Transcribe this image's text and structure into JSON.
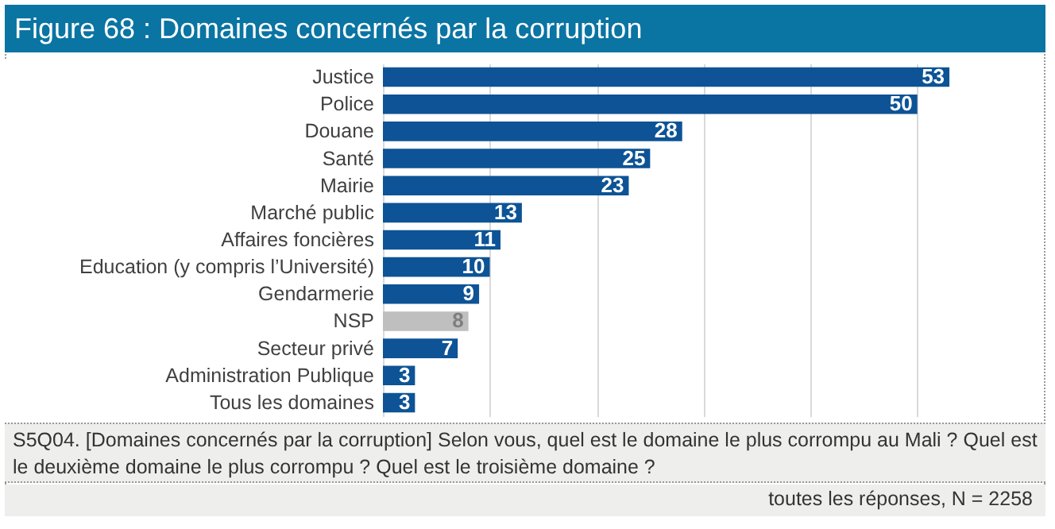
{
  "chart_data": {
    "type": "bar",
    "orientation": "horizontal",
    "title": "Figure 68 : Domaines concernés par la corruption",
    "categories": [
      "Justice",
      "Police",
      "Douane",
      "Santé",
      "Mairie",
      "Marché public",
      "Affaires foncières",
      "Education (y compris l’Université)",
      "Gendarmerie",
      "NSP",
      "Secteur privé",
      "Administration Publique",
      "Tous les domaines"
    ],
    "values": [
      53,
      50,
      28,
      25,
      23,
      13,
      11,
      10,
      9,
      8,
      7,
      3,
      3
    ],
    "colors": [
      "#0d5396",
      "#0d5396",
      "#0d5396",
      "#0d5396",
      "#0d5396",
      "#0d5396",
      "#0d5396",
      "#0d5396",
      "#0d5396",
      "#bfbfbf",
      "#0d5396",
      "#0d5396",
      "#0d5396"
    ],
    "xticks": [
      0,
      10,
      20,
      30,
      40,
      50
    ],
    "grid": "x",
    "tick_labels": "y",
    "data_labels": true,
    "annotations": [
      "S5Q04. [Domaines concernés par la corruption] Selon vous, quel est le domaine le plus corrompu au Mali ? Quel est le deuxième domaine le plus corrompu ? Quel est le troisième domaine ?",
      "toutes les réponses, N = 2258"
    ]
  }
}
